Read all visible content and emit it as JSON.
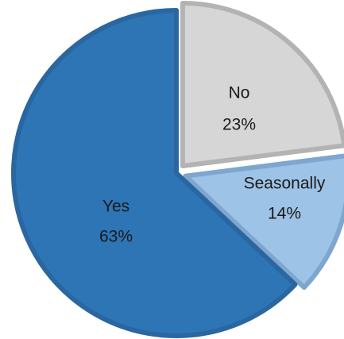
{
  "chart_data": {
    "type": "pie",
    "title": "",
    "slices": [
      {
        "label": "No",
        "value": 23,
        "value_label": "23%",
        "color": "#d6d6d6",
        "border": "#b3b3b3",
        "exploded": true
      },
      {
        "label": "Seasonally",
        "value": 14,
        "value_label": "14%",
        "color": "#9dc3e6",
        "border": "#7ea6cf",
        "exploded": true
      },
      {
        "label": "Yes",
        "value": 63,
        "value_label": "63%",
        "color": "#2e75b6",
        "border": "#2a66a0",
        "exploded": false
      }
    ],
    "start_angle": "top",
    "direction": "clockwise",
    "legend": "none"
  }
}
